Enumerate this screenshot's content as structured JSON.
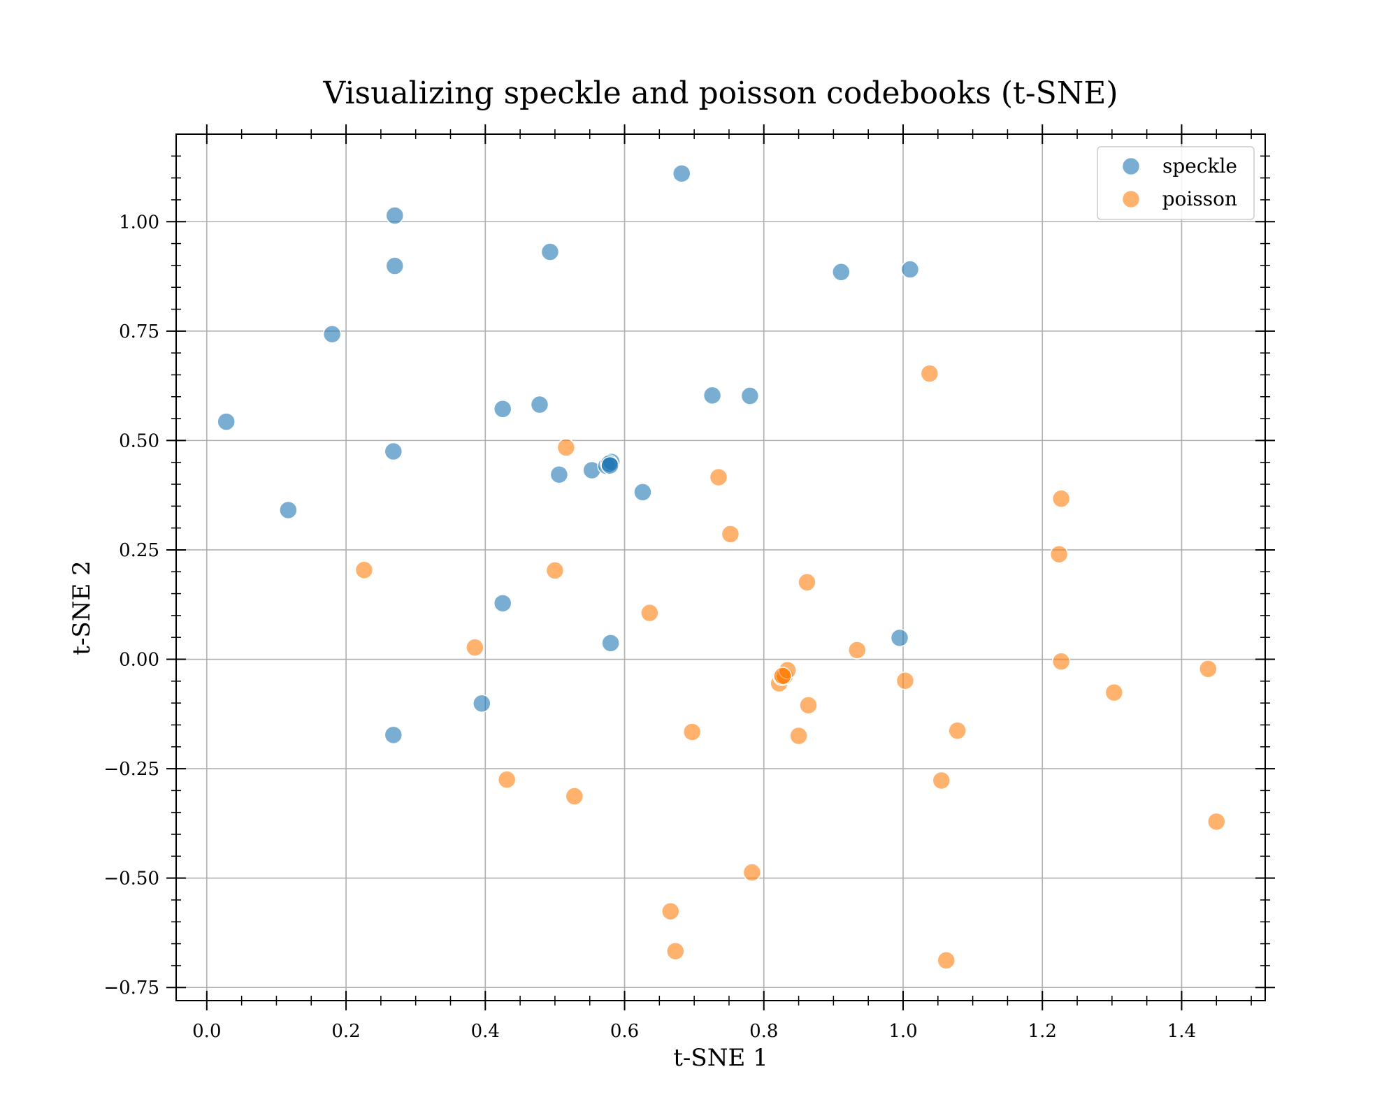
{
  "chart_data": {
    "type": "scatter",
    "title": "Visualizing speckle and poisson codebooks (t-SNE)",
    "xlabel": "t-SNE 1",
    "ylabel": "t-SNE 2",
    "xlim": [
      -0.044,
      1.52
    ],
    "ylim": [
      -0.78,
      1.2
    ],
    "xticks": [
      0.0,
      0.2,
      0.4,
      0.6,
      0.8,
      1.0,
      1.2,
      1.4
    ],
    "xtick_labels": [
      "0.0",
      "0.2",
      "0.4",
      "0.6",
      "0.8",
      "1.0",
      "1.2",
      "1.4"
    ],
    "yticks": [
      -0.75,
      -0.5,
      -0.25,
      0.0,
      0.25,
      0.5,
      0.75,
      1.0
    ],
    "ytick_labels": [
      "−0.75",
      "−0.50",
      "−0.25",
      "0.00",
      "0.25",
      "0.50",
      "0.75",
      "1.00"
    ],
    "grid": true,
    "legend_position": "top-right",
    "series": [
      {
        "name": "speckle",
        "color": "#1f77b4",
        "points": [
          [
            0.028,
            0.543
          ],
          [
            0.117,
            0.341
          ],
          [
            0.18,
            0.743
          ],
          [
            0.27,
            1.014
          ],
          [
            0.27,
            0.899
          ],
          [
            0.268,
            0.475
          ],
          [
            0.268,
            -0.173
          ],
          [
            0.395,
            -0.101
          ],
          [
            0.425,
            0.128
          ],
          [
            0.425,
            0.572
          ],
          [
            0.478,
            0.582
          ],
          [
            0.493,
            0.931
          ],
          [
            0.506,
            0.422
          ],
          [
            0.553,
            0.432
          ],
          [
            0.574,
            0.442
          ],
          [
            0.581,
            0.451
          ],
          [
            0.578,
            0.447
          ],
          [
            0.579,
            0.443
          ],
          [
            0.58,
            0.037
          ],
          [
            0.626,
            0.382
          ],
          [
            0.682,
            1.11
          ],
          [
            0.726,
            0.603
          ],
          [
            0.78,
            0.602
          ],
          [
            0.911,
            0.885
          ],
          [
            1.01,
            0.891
          ],
          [
            0.995,
            0.049
          ]
        ]
      },
      {
        "name": "poisson",
        "color": "#ff7f0e",
        "points": [
          [
            0.226,
            0.204
          ],
          [
            0.385,
            0.027
          ],
          [
            0.431,
            -0.275
          ],
          [
            0.5,
            0.203
          ],
          [
            0.516,
            0.484
          ],
          [
            0.528,
            -0.313
          ],
          [
            0.636,
            0.106
          ],
          [
            0.666,
            -0.576
          ],
          [
            0.673,
            -0.667
          ],
          [
            0.697,
            -0.166
          ],
          [
            0.735,
            0.416
          ],
          [
            0.752,
            0.286
          ],
          [
            0.783,
            -0.487
          ],
          [
            0.822,
            -0.055
          ],
          [
            0.826,
            -0.04
          ],
          [
            0.83,
            -0.038
          ],
          [
            0.834,
            -0.025
          ],
          [
            0.827,
            -0.038
          ],
          [
            0.85,
            -0.175
          ],
          [
            0.862,
            0.176
          ],
          [
            0.864,
            -0.105
          ],
          [
            0.934,
            0.021
          ],
          [
            1.003,
            -0.049
          ],
          [
            1.038,
            0.653
          ],
          [
            1.055,
            -0.277
          ],
          [
            1.062,
            -0.688
          ],
          [
            1.078,
            -0.163
          ],
          [
            1.224,
            0.24
          ],
          [
            1.227,
            0.367
          ],
          [
            1.227,
            -0.005
          ],
          [
            1.303,
            -0.076
          ],
          [
            1.438,
            -0.022
          ],
          [
            1.45,
            -0.371
          ]
        ]
      }
    ]
  }
}
